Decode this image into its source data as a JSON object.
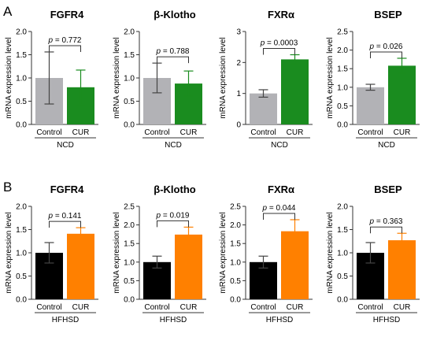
{
  "panels": [
    {
      "letter": "A",
      "group": "NCD"
    },
    {
      "letter": "B",
      "group": "HFHSD"
    }
  ],
  "chart_data": [
    {
      "type": "bar",
      "panel": "A",
      "title": "FGFR4",
      "ylabel": "mRNA expression level",
      "group_label": "NCD",
      "categories": [
        "Control",
        "CUR"
      ],
      "values": [
        1.0,
        0.8
      ],
      "errors": [
        0.56,
        0.37
      ],
      "colors": [
        "#b2b2b6",
        "#1a8c1f"
      ],
      "ylim": [
        0,
        2.0
      ],
      "yticks": [
        "0.0",
        "0.5",
        "1.0",
        "1.5",
        "2.0"
      ],
      "p_prefix": "p",
      "p_value": "= 0.772"
    },
    {
      "type": "bar",
      "panel": "A",
      "title": "β-Klotho",
      "ylabel": "mRNA expression level",
      "group_label": "NCD",
      "categories": [
        "Control",
        "CUR"
      ],
      "values": [
        1.0,
        0.88
      ],
      "errors": [
        0.32,
        0.27
      ],
      "colors": [
        "#b2b2b6",
        "#1a8c1f"
      ],
      "ylim": [
        0,
        2.0
      ],
      "yticks": [
        "0.0",
        "0.5",
        "1.0",
        "1.5",
        "2.0"
      ],
      "p_prefix": "p",
      "p_value": "= 0.788"
    },
    {
      "type": "bar",
      "panel": "A",
      "title": "FXRα",
      "ylabel": "mRNA expression level",
      "group_label": "NCD",
      "categories": [
        "Control",
        "CUR"
      ],
      "values": [
        1.0,
        2.1
      ],
      "errors": [
        0.12,
        0.15
      ],
      "colors": [
        "#b2b2b6",
        "#1a8c1f"
      ],
      "ylim": [
        0,
        3
      ],
      "yticks": [
        "0",
        "1",
        "2",
        "3"
      ],
      "p_prefix": "p",
      "p_value": "= 0.0003"
    },
    {
      "type": "bar",
      "panel": "A",
      "title": "BSEP",
      "ylabel": "mRNA expression level",
      "group_label": "NCD",
      "categories": [
        "Control",
        "CUR"
      ],
      "values": [
        1.0,
        1.58
      ],
      "errors": [
        0.08,
        0.2
      ],
      "colors": [
        "#b2b2b6",
        "#1a8c1f"
      ],
      "ylim": [
        0,
        2.5
      ],
      "yticks": [
        "0.0",
        "0.5",
        "1.0",
        "1.5",
        "2.0",
        "2.5"
      ],
      "p_prefix": "p",
      "p_value": "= 0.026"
    },
    {
      "type": "bar",
      "panel": "B",
      "title": "FGFR4",
      "ylabel": "mRNA expression level",
      "group_label": "HFHSD",
      "categories": [
        "Control",
        "CUR"
      ],
      "values": [
        1.0,
        1.41
      ],
      "errors": [
        0.22,
        0.13
      ],
      "colors": [
        "#000000",
        "#ff8000"
      ],
      "ylim": [
        0,
        2.0
      ],
      "yticks": [
        "0.0",
        "0.5",
        "1.0",
        "1.5",
        "2.0"
      ],
      "p_prefix": "p",
      "p_value": "= 0.141"
    },
    {
      "type": "bar",
      "panel": "B",
      "title": "β-Klotho",
      "ylabel": "mRNA expression level",
      "group_label": "HFHSD",
      "categories": [
        "Control",
        "CUR"
      ],
      "values": [
        1.0,
        1.74
      ],
      "errors": [
        0.16,
        0.2
      ],
      "colors": [
        "#000000",
        "#ff8000"
      ],
      "ylim": [
        0,
        2.5
      ],
      "yticks": [
        "0.0",
        "0.5",
        "1.0",
        "1.5",
        "2.0",
        "2.5"
      ],
      "p_prefix": "p",
      "p_value": "= 0.019"
    },
    {
      "type": "bar",
      "panel": "B",
      "title": "FXRα",
      "ylabel": "mRNA expression level",
      "group_label": "HFHSD",
      "categories": [
        "Control",
        "CUR"
      ],
      "values": [
        1.0,
        1.83
      ],
      "errors": [
        0.16,
        0.31
      ],
      "colors": [
        "#000000",
        "#ff8000"
      ],
      "ylim": [
        0,
        2.5
      ],
      "yticks": [
        "0.0",
        "0.5",
        "1.0",
        "1.5",
        "2.0",
        "2.5"
      ],
      "p_prefix": "p",
      "p_value": "= 0.044"
    },
    {
      "type": "bar",
      "panel": "B",
      "title": "BSEP",
      "ylabel": "mRNA expression level",
      "group_label": "HFHSD",
      "categories": [
        "Control",
        "CUR"
      ],
      "values": [
        1.0,
        1.27
      ],
      "errors": [
        0.22,
        0.15
      ],
      "colors": [
        "#000000",
        "#ff8000"
      ],
      "ylim": [
        0,
        2.0
      ],
      "yticks": [
        "0.0",
        "0.5",
        "1.0",
        "1.5",
        "2.0"
      ],
      "p_prefix": "p",
      "p_value": "= 0.363"
    }
  ]
}
